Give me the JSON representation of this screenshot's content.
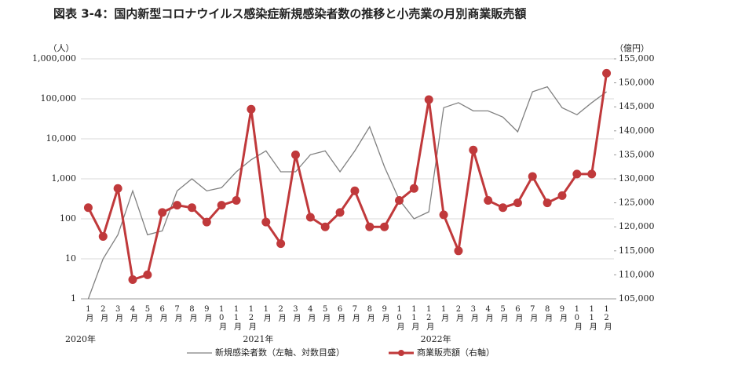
{
  "chart_data": {
    "type": "line",
    "title": "図表 3-4：国内新型コロナウイルス感染症新規感染者数の推移と小売業の月別商業販売額",
    "y_axis_label": "（人）",
    "y2_axis_label": "（億円）",
    "categories": [
      "1月",
      "2月",
      "3月",
      "4月",
      "5月",
      "6月",
      "7月",
      "8月",
      "9月",
      "10月",
      "11月",
      "12月",
      "1月",
      "2月",
      "3月",
      "4月",
      "5月",
      "6月",
      "7月",
      "8月",
      "9月",
      "10月",
      "11月",
      "12月",
      "1月",
      "2月",
      "3月",
      "4月",
      "5月",
      "6月",
      "7月",
      "8月",
      "9月",
      "10月",
      "11月",
      "12月"
    ],
    "years": [
      "2020年",
      "2021年",
      "2022年"
    ],
    "series": [
      {
        "name": "新規感染者数（左軸、対数目盛）",
        "color": "#808080",
        "axis": "y",
        "values": [
          1,
          10,
          40,
          500,
          40,
          50,
          500,
          1000,
          500,
          600,
          1500,
          3000,
          5000,
          1500,
          1500,
          4000,
          5000,
          1500,
          5000,
          20000,
          2000,
          300,
          100,
          150,
          60000,
          80000,
          50000,
          50000,
          35000,
          15000,
          150000,
          200000,
          60000,
          40000,
          80000,
          150000
        ]
      },
      {
        "name": "商業販売額（右軸）",
        "color": "#c0393b",
        "axis": "y2",
        "values": [
          124000,
          118000,
          128000,
          109000,
          110000,
          123000,
          124500,
          124000,
          121000,
          124500,
          125500,
          144500,
          121000,
          116500,
          135000,
          122000,
          120000,
          123000,
          127500,
          120000,
          120000,
          125500,
          128000,
          146500,
          122500,
          115000,
          136000,
          125500,
          124000,
          125000,
          130500,
          125000,
          126500,
          131000,
          131000,
          152000
        ]
      }
    ],
    "log_y": true,
    "ylim": [
      1,
      1000000
    ],
    "yticks": [
      1,
      10,
      100,
      {
        "value": 1000,
        "label": "1,000"
      },
      {
        "value": 10000,
        "label": "10,000"
      },
      {
        "value": 100000,
        "label": "100,000"
      },
      {
        "value": 1000000,
        "label": "1,000,000"
      }
    ],
    "y2lim": [
      105000,
      155000
    ],
    "y2ticks": [
      {
        "value": 105000,
        "label": "105,000"
      },
      {
        "value": 110000,
        "label": "110,000"
      },
      {
        "value": 115000,
        "label": "115,000"
      },
      {
        "value": 120000,
        "label": "120,000"
      },
      {
        "value": 125000,
        "label": "125,000"
      },
      {
        "value": 130000,
        "label": "130,000"
      },
      {
        "value": 135000,
        "label": "135,000"
      },
      {
        "value": 140000,
        "label": "140,000"
      },
      {
        "value": 145000,
        "label": "145,000"
      },
      {
        "value": 150000,
        "label": "150,000"
      },
      {
        "value": 155000,
        "label": "155,000"
      }
    ],
    "grid": true
  }
}
